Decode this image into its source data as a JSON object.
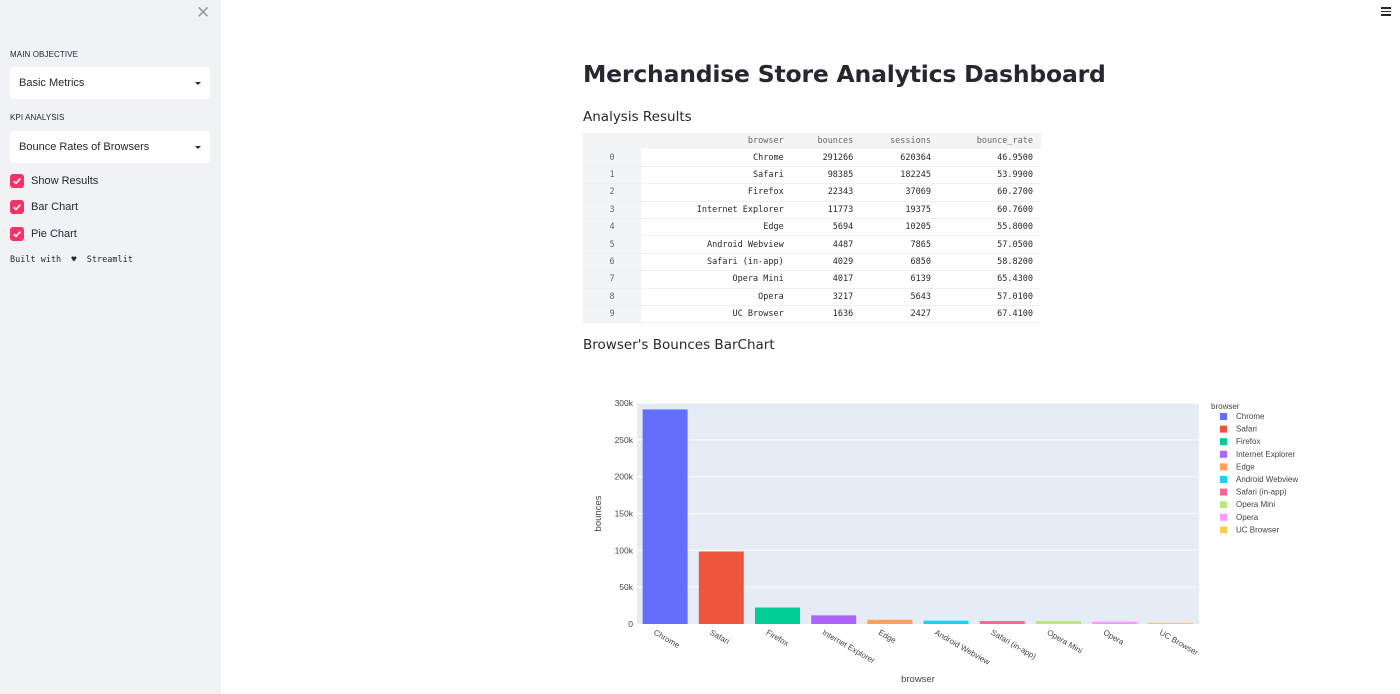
{
  "sidebar": {
    "close_glyph": "✕",
    "main_objective_label": "MAIN OBJECTIVE",
    "main_objective_value": "Basic Metrics",
    "kpi_label": "KPI ANALYSIS",
    "kpi_value": "Bounce Rates of Browsers",
    "checkboxes": [
      {
        "label": "Show Results",
        "checked": true
      },
      {
        "label": "Bar Chart",
        "checked": true
      },
      {
        "label": "Pie Chart",
        "checked": true
      }
    ],
    "built_with": "Built with  ♥  Streamlit"
  },
  "main": {
    "title": "Merchandise Store Analytics Dashboard",
    "results_heading": "Analysis Results",
    "chart_heading": "Browser's Bounces BarChart"
  },
  "table": {
    "columns": [
      "browser",
      "bounces",
      "sessions",
      "bounce_rate"
    ],
    "rows": [
      [
        "0",
        "Chrome",
        "291266",
        "620364",
        "46.9500"
      ],
      [
        "1",
        "Safari",
        "98385",
        "182245",
        "53.9900"
      ],
      [
        "2",
        "Firefox",
        "22343",
        "37069",
        "60.2700"
      ],
      [
        "3",
        "Internet Explorer",
        "11773",
        "19375",
        "60.7600"
      ],
      [
        "4",
        "Edge",
        "5694",
        "10205",
        "55.8000"
      ],
      [
        "5",
        "Android Webview",
        "4487",
        "7865",
        "57.0500"
      ],
      [
        "6",
        "Safari (in-app)",
        "4029",
        "6850",
        "58.8200"
      ],
      [
        "7",
        "Opera Mini",
        "4017",
        "6139",
        "65.4300"
      ],
      [
        "8",
        "Opera",
        "3217",
        "5643",
        "57.0100"
      ],
      [
        "9",
        "UC Browser",
        "1636",
        "2427",
        "67.4100"
      ]
    ]
  },
  "chart_data": {
    "type": "bar",
    "title": "",
    "xlabel": "browser",
    "ylabel": "bounces",
    "categories": [
      "Chrome",
      "Safari",
      "Firefox",
      "Internet Explorer",
      "Edge",
      "Android Webview",
      "Safari (in-app)",
      "Opera Mini",
      "Opera",
      "UC Browser"
    ],
    "values": [
      291266,
      98385,
      22343,
      11773,
      5694,
      4487,
      4029,
      4017,
      3217,
      1636
    ],
    "colors": [
      "#636efa",
      "#ef553b",
      "#00cc96",
      "#ab63fa",
      "#ffa15a",
      "#19d3f3",
      "#ff6692",
      "#b6e880",
      "#ff97ff",
      "#fecb52"
    ],
    "ylim": [
      0,
      300000
    ],
    "yticks": [
      0,
      50000,
      100000,
      150000,
      200000,
      250000,
      300000
    ],
    "ytick_labels": [
      "0",
      "50k",
      "100k",
      "150k",
      "200k",
      "250k",
      "300k"
    ],
    "legend_title": "browser",
    "legend_position": "right",
    "grid": true
  }
}
